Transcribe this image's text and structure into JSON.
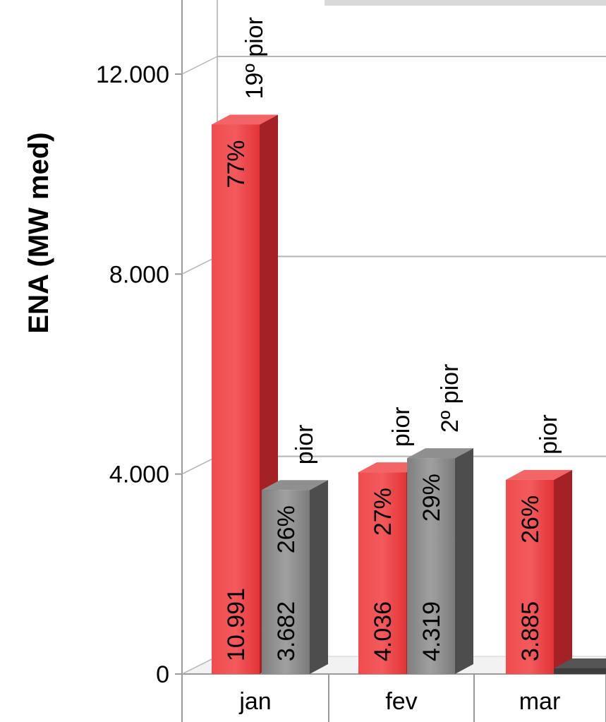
{
  "chart_data": {
    "type": "bar",
    "ylabel": "ENA (MW med)",
    "ylim": [
      0,
      12000
    ],
    "yticks": [
      {
        "value": 0,
        "label": "0"
      },
      {
        "value": 4000,
        "label": "4.000"
      },
      {
        "value": 8000,
        "label": "8.000"
      },
      {
        "value": 12000,
        "label": "12.000"
      }
    ],
    "categories": [
      "jan",
      "fev",
      "mar"
    ],
    "series": [
      {
        "color": "#e8393b",
        "values": [
          10991,
          4036,
          3885
        ],
        "value_labels": [
          "10.991",
          "4.036",
          "3.885"
        ],
        "pct_labels": [
          "77%",
          "27%",
          "26%"
        ],
        "rank_labels": [
          "19º pior",
          "pior",
          "pior"
        ]
      },
      {
        "color": "#8a8a8a",
        "values": [
          3682,
          4319,
          null
        ],
        "value_labels": [
          "3.682",
          "4.319",
          ""
        ],
        "pct_labels": [
          "26%",
          "29%",
          ""
        ],
        "rank_labels": [
          "pior",
          "2º pior",
          ""
        ]
      }
    ],
    "grid": true,
    "legend": "none"
  }
}
